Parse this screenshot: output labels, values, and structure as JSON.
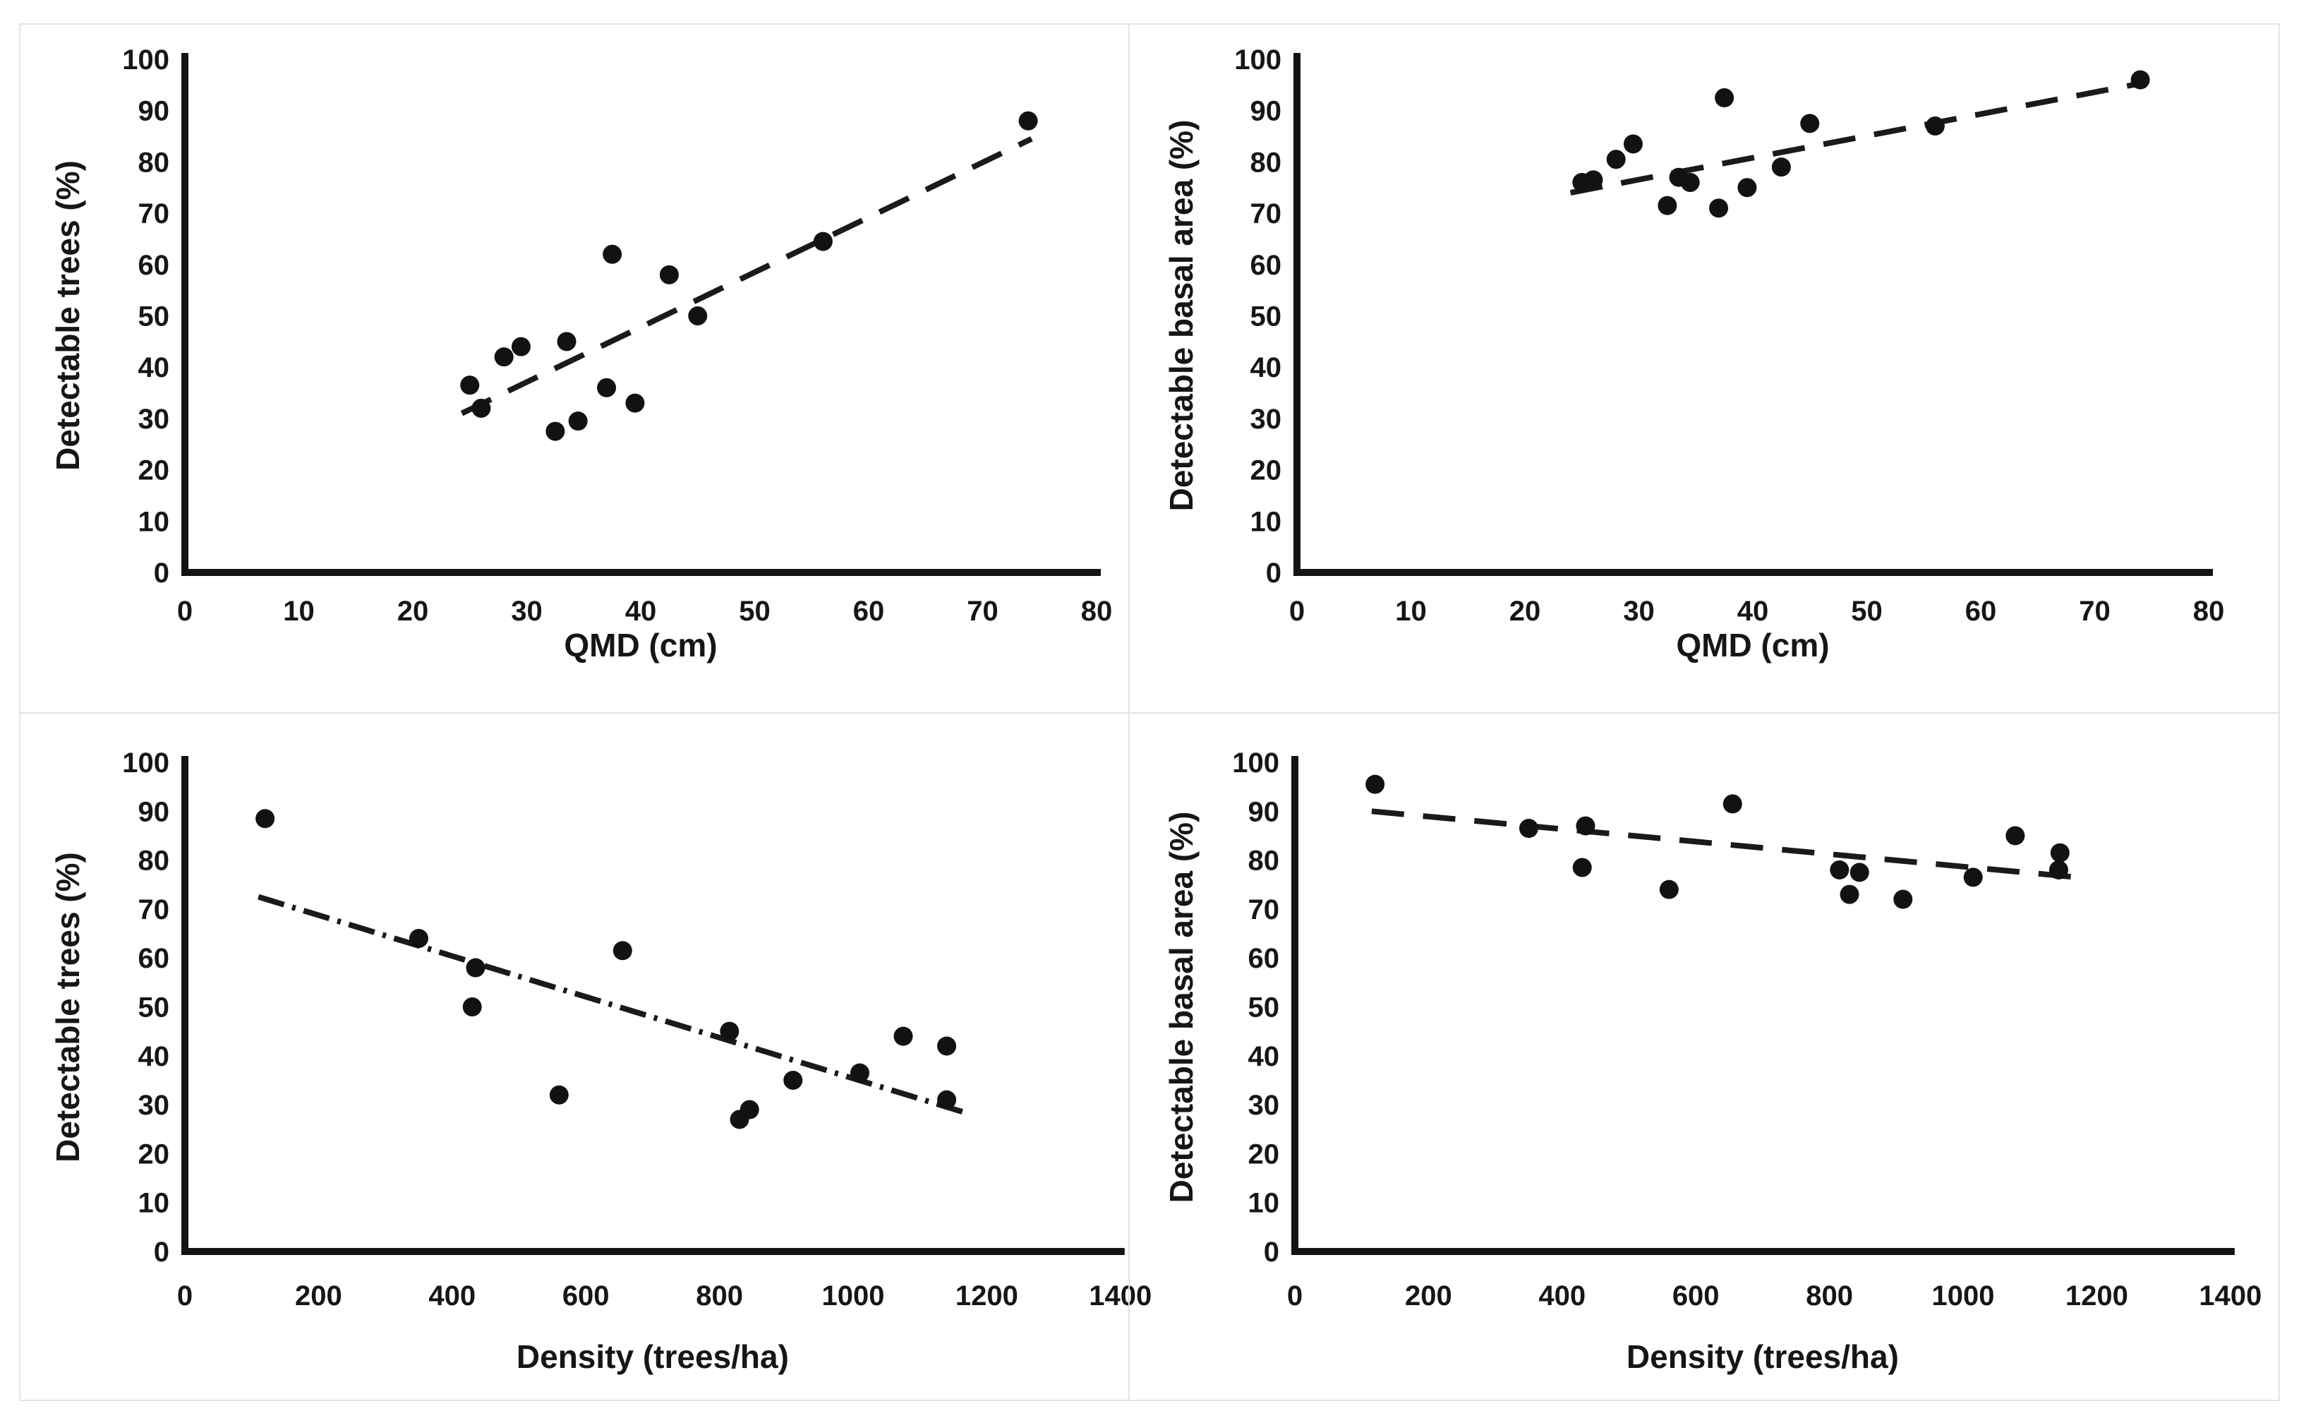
{
  "figure_background": "#ffffff",
  "colors": {
    "point": "#121212",
    "axis": "#141414",
    "trend": "#1a1a1a",
    "frame": "#e4e4e4",
    "text": "#161616"
  },
  "chart_data": [
    {
      "type": "scatter",
      "id": "top-left",
      "title": "",
      "xlabel": "QMD (cm)",
      "ylabel": "Detectable  trees (%)",
      "xlim": [
        0,
        80
      ],
      "ylim": [
        0,
        100
      ],
      "x_ticks": [
        0,
        10,
        20,
        30,
        40,
        50,
        60,
        70,
        80
      ],
      "y_ticks": [
        0,
        10,
        20,
        30,
        40,
        50,
        60,
        70,
        80,
        90,
        100
      ],
      "grid": "off",
      "legend": "none",
      "points": [
        [
          25,
          36.5
        ],
        [
          26,
          32
        ],
        [
          28,
          42
        ],
        [
          29.5,
          44
        ],
        [
          33.5,
          45
        ],
        [
          32.5,
          27.5
        ],
        [
          34.5,
          29.5
        ],
        [
          37,
          36
        ],
        [
          39.5,
          33
        ],
        [
          37.5,
          62
        ],
        [
          42.5,
          58
        ],
        [
          45,
          50
        ],
        [
          56,
          64.5
        ],
        [
          74,
          88
        ]
      ],
      "trend": {
        "style": "long-dash",
        "x1": 24.3,
        "y1": 31,
        "x2": 74.3,
        "y2": 84.5
      }
    },
    {
      "type": "scatter",
      "id": "top-right",
      "title": "",
      "xlabel": "QMD (cm)",
      "ylabel": "Detectable basal area (%)",
      "xlim": [
        0,
        80
      ],
      "ylim": [
        0,
        100
      ],
      "x_ticks": [
        0,
        10,
        20,
        30,
        40,
        50,
        60,
        70,
        80
      ],
      "y_ticks": [
        0,
        10,
        20,
        30,
        40,
        50,
        60,
        70,
        80,
        90,
        100
      ],
      "grid": "off",
      "legend": "none",
      "points": [
        [
          25,
          76
        ],
        [
          26,
          76.5
        ],
        [
          28,
          80.5
        ],
        [
          29.5,
          83.5
        ],
        [
          32.5,
          71.5
        ],
        [
          33.5,
          77
        ],
        [
          34.5,
          76
        ],
        [
          37,
          71
        ],
        [
          37.5,
          92.5
        ],
        [
          39.5,
          75
        ],
        [
          42.5,
          79
        ],
        [
          45,
          87.5
        ],
        [
          56,
          87
        ],
        [
          74,
          96
        ]
      ],
      "trend": {
        "style": "long-dash",
        "x1": 24,
        "y1": 74,
        "x2": 74.5,
        "y2": 95.5
      }
    },
    {
      "type": "scatter",
      "id": "bottom-left",
      "title": "",
      "xlabel": "Density (trees/ha)",
      "ylabel": "Detectable  trees (%)",
      "xlim": [
        0,
        1400
      ],
      "ylim": [
        0,
        100
      ],
      "x_ticks": [
        0,
        200,
        400,
        600,
        800,
        1000,
        1200,
        1400
      ],
      "y_ticks": [
        0,
        10,
        20,
        30,
        40,
        50,
        60,
        70,
        80,
        90,
        100
      ],
      "grid": "off",
      "legend": "none",
      "points": [
        [
          120,
          88.5
        ],
        [
          350,
          64
        ],
        [
          435,
          58
        ],
        [
          430,
          50
        ],
        [
          560,
          32
        ],
        [
          655,
          61.5
        ],
        [
          815,
          45
        ],
        [
          830,
          27
        ],
        [
          845,
          29
        ],
        [
          910,
          35
        ],
        [
          1010,
          36.5
        ],
        [
          1075,
          44
        ],
        [
          1140,
          42
        ],
        [
          1140,
          31
        ]
      ],
      "trend": {
        "style": "dash-dot",
        "x1": 110,
        "y1": 72.5,
        "x2": 1165,
        "y2": 28.5
      }
    },
    {
      "type": "scatter",
      "id": "bottom-right",
      "title": "",
      "xlabel": "Density (trees/ha)",
      "ylabel": "Detectable basal area (%)",
      "xlim": [
        0,
        1400
      ],
      "ylim": [
        0,
        100
      ],
      "x_ticks": [
        0,
        200,
        400,
        600,
        800,
        1000,
        1200,
        1400
      ],
      "y_ticks": [
        0,
        10,
        20,
        30,
        40,
        50,
        60,
        70,
        80,
        90,
        100
      ],
      "grid": "off",
      "legend": "none",
      "points": [
        [
          120,
          95.5
        ],
        [
          350,
          86.5
        ],
        [
          435,
          87
        ],
        [
          430,
          78.5
        ],
        [
          560,
          74
        ],
        [
          655,
          91.5
        ],
        [
          815,
          78
        ],
        [
          830,
          73
        ],
        [
          845,
          77.5
        ],
        [
          910,
          72
        ],
        [
          1015,
          76.5
        ],
        [
          1078,
          85
        ],
        [
          1145,
          81.5
        ],
        [
          1143,
          78
        ]
      ],
      "trend": {
        "style": "long-dash",
        "x1": 115,
        "y1": 90,
        "x2": 1170,
        "y2": 76.5
      }
    }
  ]
}
